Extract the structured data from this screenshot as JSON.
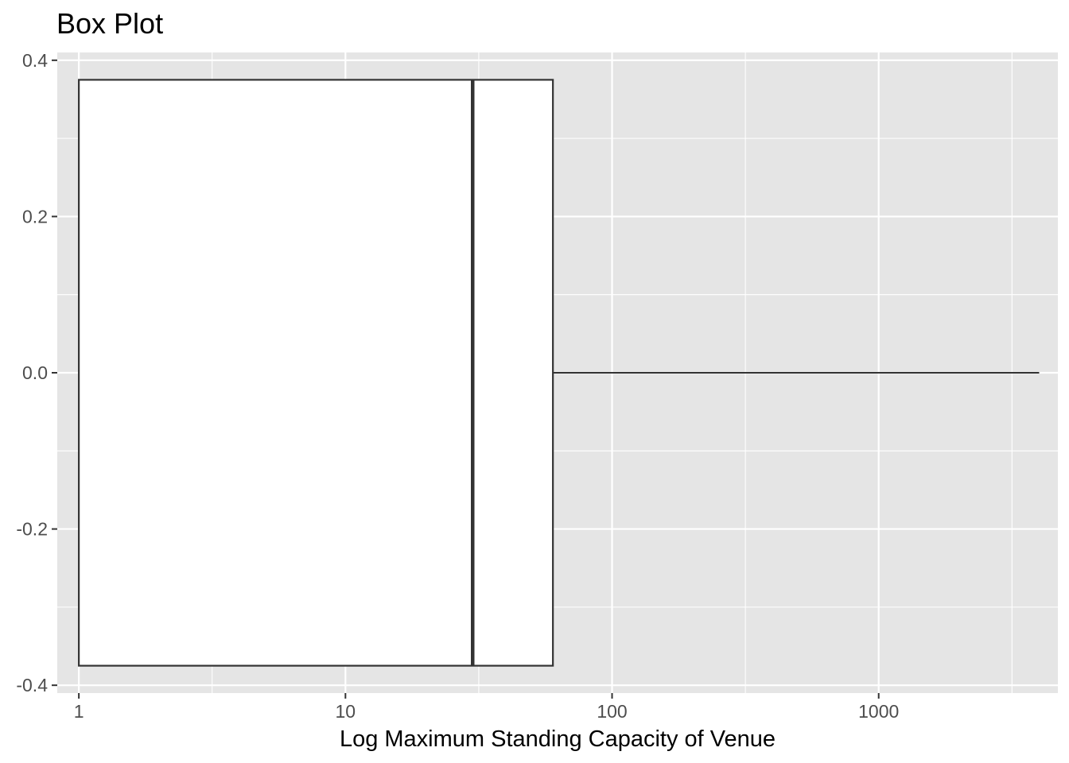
{
  "chart_data": {
    "type": "boxplot",
    "title": "Box Plot",
    "xlabel": "Log Maximum Standing Capacity of Venue",
    "ylabel": "",
    "x_scale": "log10",
    "xlim": [
      0.83,
      4700
    ],
    "ylim": [
      -0.41,
      0.41
    ],
    "x_ticks": [
      1,
      10,
      100,
      1000
    ],
    "x_tick_labels": [
      "1",
      "10",
      "100",
      "1000"
    ],
    "y_ticks": [
      -0.4,
      -0.2,
      0.0,
      0.2,
      0.4
    ],
    "y_tick_labels": [
      "-0.4",
      "-0.2",
      "0.0",
      "0.2",
      "0.4"
    ],
    "grid": true,
    "orientation": "horizontal",
    "box": {
      "y_center": 0.0,
      "half_width": 0.375,
      "whisker_low": 1,
      "q1": 1,
      "median": 30,
      "q3": 60,
      "whisker_high": 4000
    },
    "colors": {
      "panel_background": "#e5e5e5",
      "grid_line": "#ffffff",
      "box_fill": "#ffffff",
      "box_stroke": "#333333"
    }
  }
}
